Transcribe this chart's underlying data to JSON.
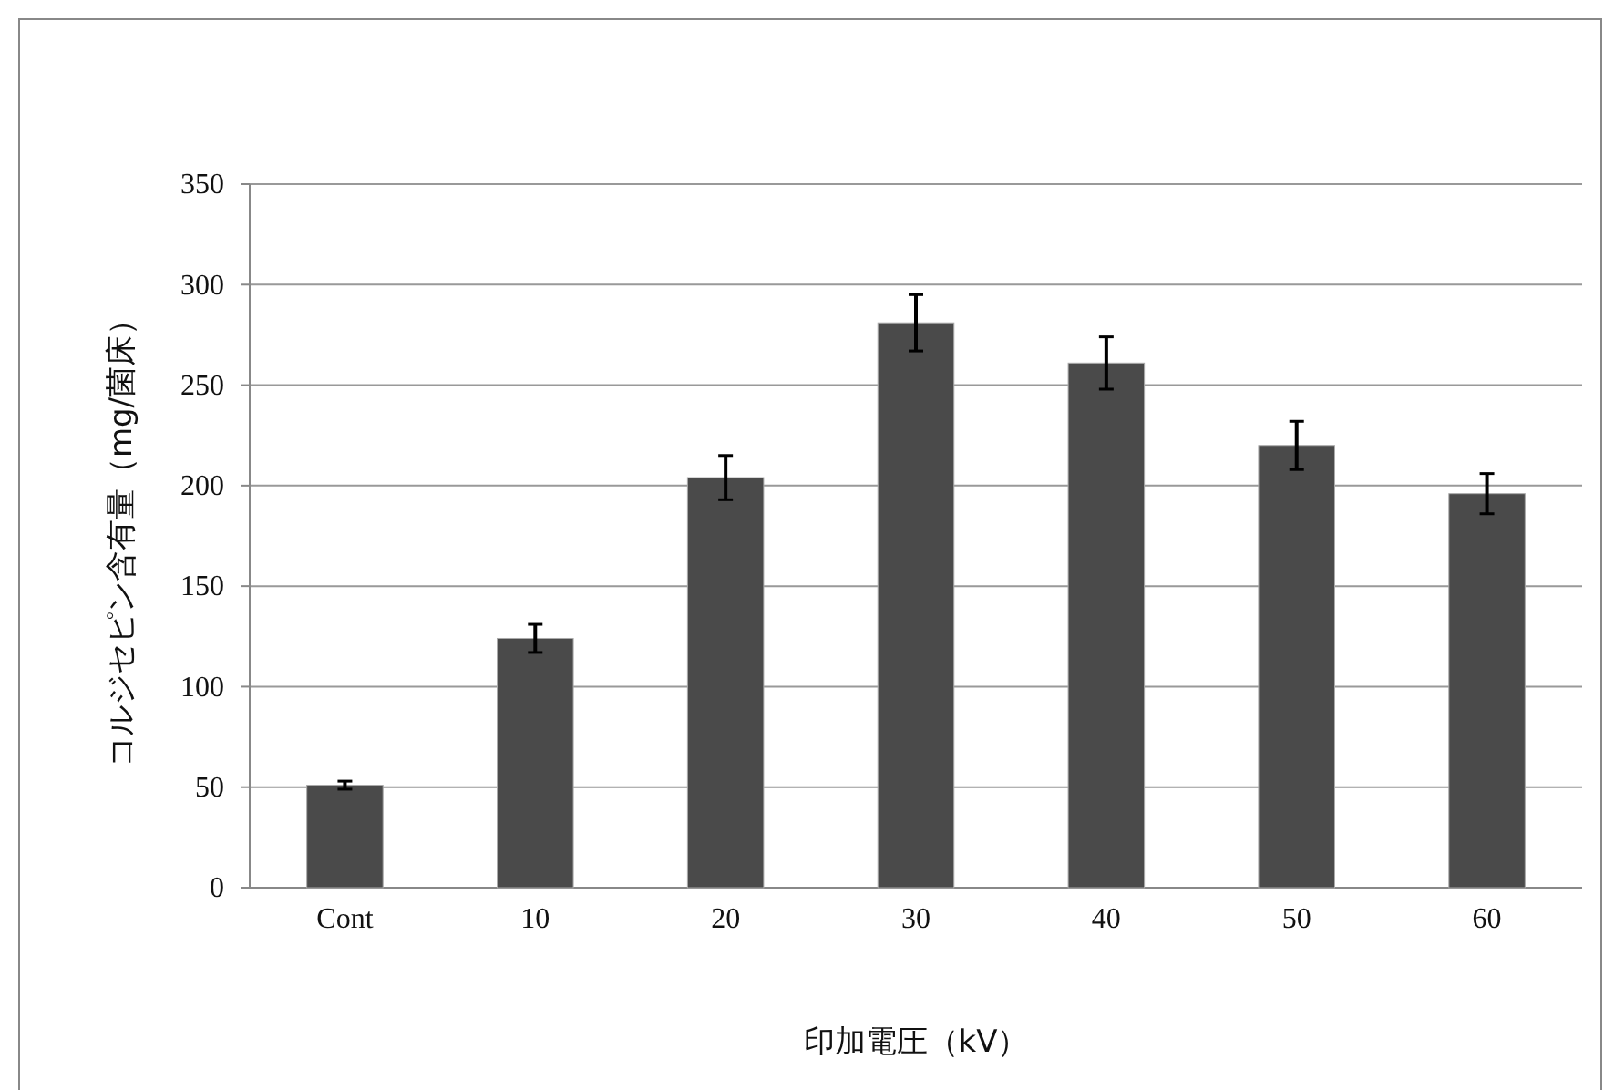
{
  "chart_data": {
    "type": "bar",
    "xlabel": "印加電圧（kV）",
    "ylabel": "コルジセピン含有量（mg/菌床）",
    "categories": [
      "Cont",
      "10",
      "20",
      "30",
      "40",
      "50",
      "60"
    ],
    "values": [
      51,
      124,
      204,
      281,
      261,
      220,
      196
    ],
    "errors": [
      2,
      7,
      11,
      14,
      13,
      12,
      10
    ],
    "color": "#4a4a4a",
    "ylim": [
      0,
      350
    ],
    "yticks": [
      0,
      50,
      100,
      150,
      200,
      250,
      300,
      350
    ],
    "grid": "y"
  }
}
